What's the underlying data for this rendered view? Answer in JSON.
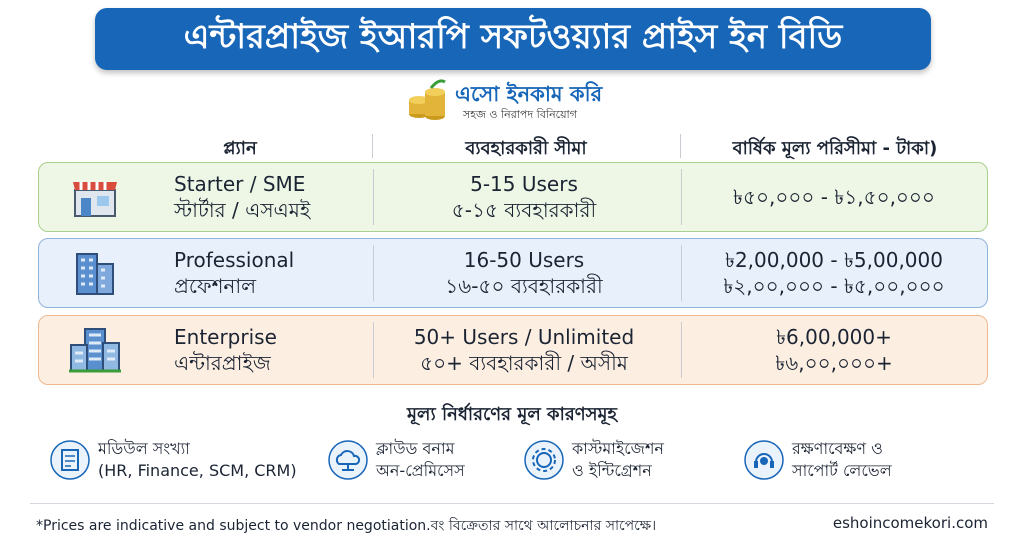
{
  "header": {
    "title": "এন্টারপ্রাইজ ইআরপি সফটওয়্যার প্রাইস ইন বিডি",
    "logo_name": "এসো ইনকাম করি",
    "logo_tagline": "সহজ ও নিরাপদ বিনিয়োগ"
  },
  "table": {
    "columns": [
      "প্ল্যান",
      "ব্যবহারকারী সীমা",
      "বার্ষিক মূল্য পরিসীমা - টাকা)"
    ],
    "rows": [
      {
        "plan": [
          "Starter / SME",
          "স্টার্টার / এসএমই"
        ],
        "users": [
          "5-15 Users",
          "৫-১৫ ব্যবহারকারী"
        ],
        "price": [
          "৳৫০,০০০ - ৳১,৫০,০০০"
        ]
      },
      {
        "plan": [
          "Professional",
          "প্রফেশনাল"
        ],
        "users": [
          "16-50 Users",
          "১৬-৫০ ব্যবহারকারী"
        ],
        "price": [
          "৳2,00,000 - ৳5,00,000",
          "৳২,০০,০০০ - ৳৫,০০,০০০"
        ]
      },
      {
        "plan": [
          "Enterprise",
          "এন্টারপ্রাইজ"
        ],
        "users": [
          "50+ Users / Unlimited",
          "৫০+ ব্যবহারকারী / অসীম"
        ],
        "price": [
          "৳6,00,000+",
          "৳৬,০০,০০০+"
        ]
      }
    ]
  },
  "factors": {
    "title": "মূল্য নির্ধারণের মূল কারণসমূহ",
    "items": [
      [
        "মডিউল সংখ্যা",
        "(HR, Finance, SCM, CRM)"
      ],
      [
        "ক্লাউড বনাম",
        "অন-প্রেমিসেস"
      ],
      [
        "কাস্টমাইজেশন",
        "ও ইন্টিগ্রেশন"
      ],
      [
        "রক্ষণাবেক্ষণ ও",
        "সাপোর্ট লেভেল"
      ]
    ]
  },
  "footer": {
    "note": "*Prices are indicative and subject to vendor negotiation.বং বিক্রেতার সাথে আলোচনার সাপেক্ষে।",
    "website": "eshoincomekori.com"
  }
}
